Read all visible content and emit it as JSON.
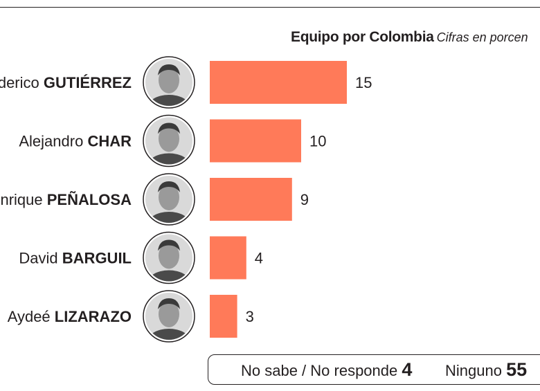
{
  "header": {
    "group": "Equipo por Colombia",
    "units": "Cifras en porcen"
  },
  "chart_data": {
    "type": "bar",
    "orientation": "horizontal",
    "title": "Equipo por Colombia",
    "subtitle": "Cifras en porcen",
    "categories": [
      {
        "first": "Federico",
        "last": "GUTIÉRREZ"
      },
      {
        "first": "Alejandro",
        "last": "CHAR"
      },
      {
        "first": "Enrique",
        "last": "PEÑALOSA"
      },
      {
        "first": "David",
        "last": "BARGUIL"
      },
      {
        "first": "Aydeé",
        "last": "LIZARAZO"
      }
    ],
    "values": [
      15,
      10,
      9,
      4,
      3
    ],
    "bar_color": "#ff7a59",
    "grid": false,
    "legend": "none"
  },
  "footer": {
    "no_sabe_label": "No sabe / No responde",
    "no_sabe_value": "4",
    "ninguno_label": "Ninguno",
    "ninguno_value": "55"
  }
}
